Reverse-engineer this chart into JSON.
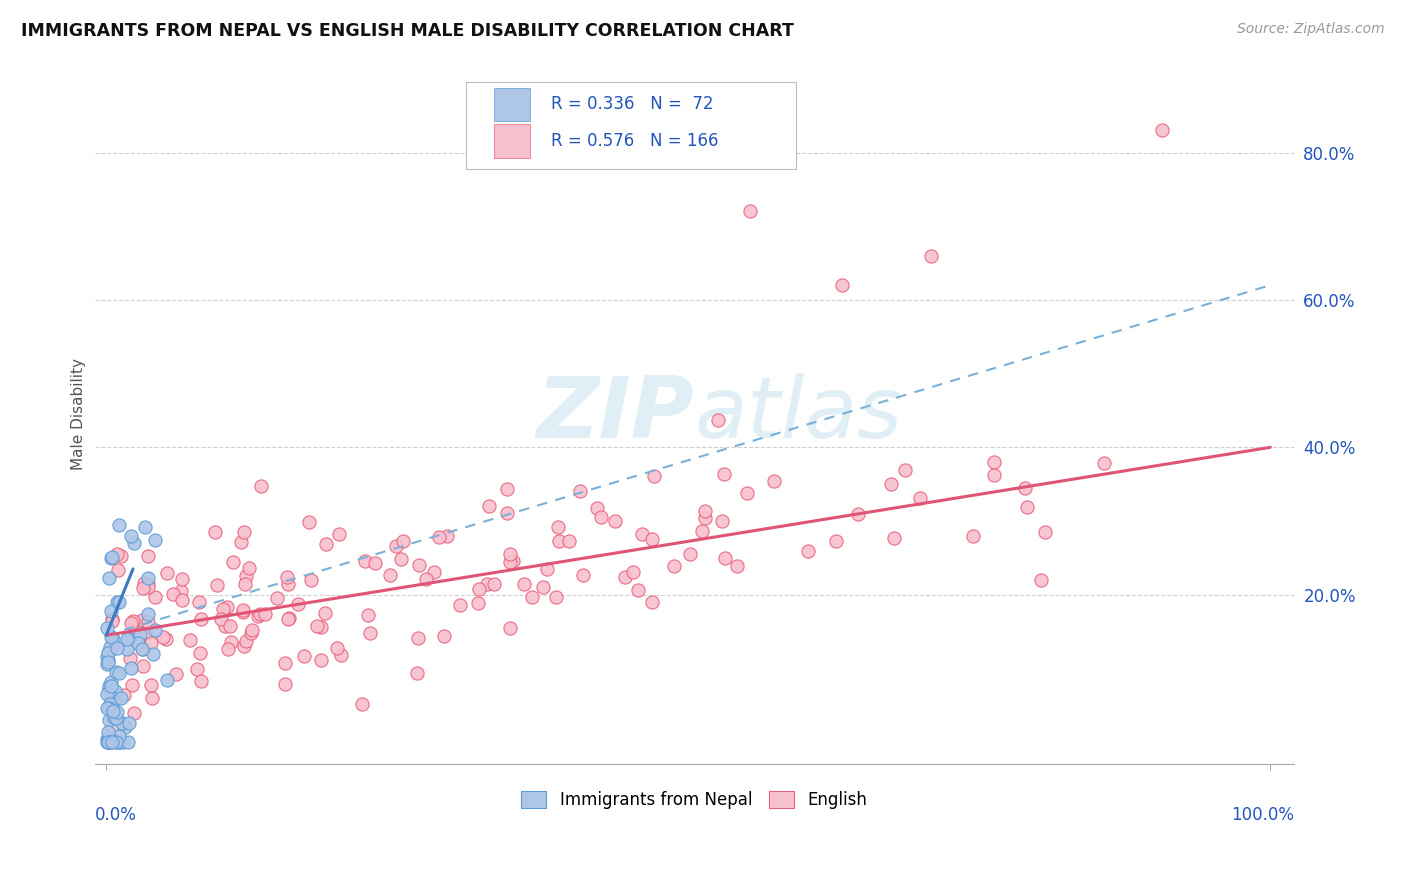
{
  "title": "IMMIGRANTS FROM NEPAL VS ENGLISH MALE DISABILITY CORRELATION CHART",
  "source_text": "Source: ZipAtlas.com",
  "ylabel": "Male Disability",
  "legend_labels": [
    "Immigrants from Nepal",
    "English"
  ],
  "nepal_R": "0.336",
  "nepal_N": "72",
  "english_R": "0.576",
  "english_N": "166",
  "nepal_color": "#aec6e8",
  "english_color": "#f7c0ce",
  "nepal_edge_color": "#5b9bd5",
  "english_edge_color": "#e8607a",
  "nepal_line_color": "#3a7abf",
  "english_line_color": "#e05575",
  "nepal_dash_color": "#7ab0d8",
  "background_color": "#ffffff",
  "watermark_color": "#cce4f0",
  "ylim": [
    -0.03,
    0.92
  ],
  "xlim": [
    -0.01,
    1.02
  ],
  "ytick_values": [
    0.0,
    0.2,
    0.4,
    0.6,
    0.8
  ],
  "ytick_labels": [
    "",
    "20.0%",
    "40.0%",
    "60.0%",
    "80.0%"
  ],
  "xtick_values": [
    0.0,
    1.0
  ],
  "xtick_labels": [
    "0.0%",
    "100.0%"
  ]
}
